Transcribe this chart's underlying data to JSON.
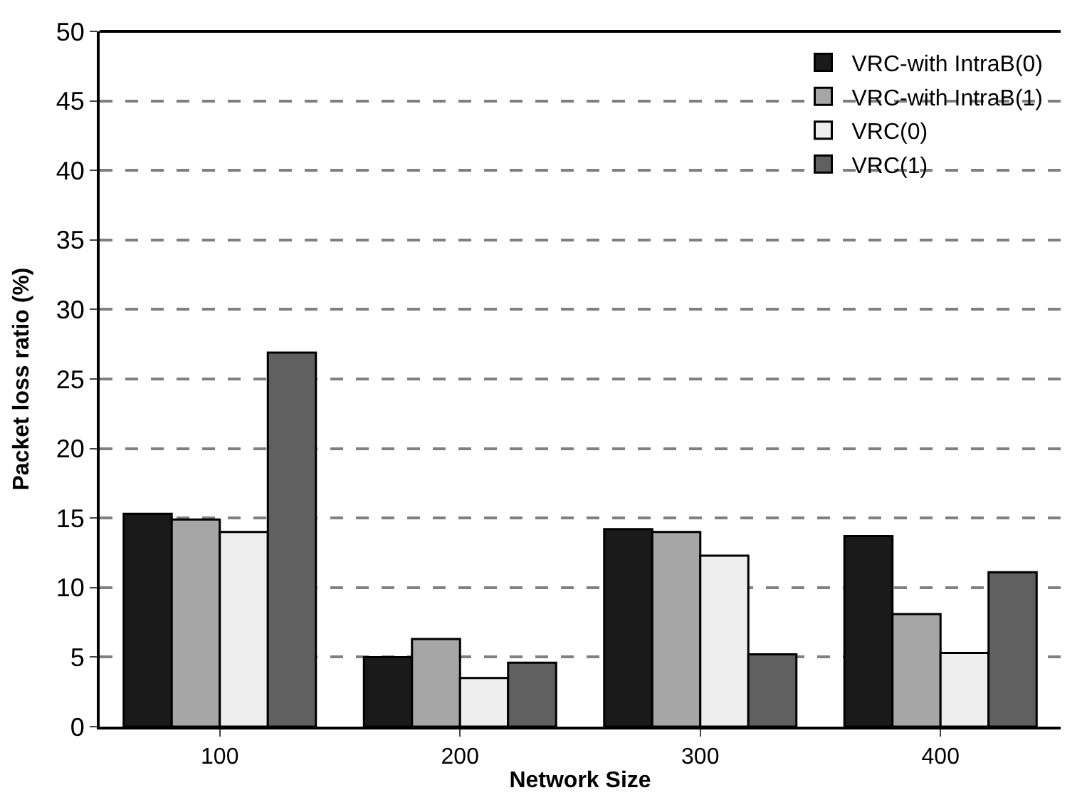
{
  "chart_data": {
    "type": "bar",
    "xlabel": "Network Size",
    "ylabel": "Packet loss ratio (%)",
    "categories": [
      "100",
      "200",
      "300",
      "400"
    ],
    "series": [
      {
        "name": "VRC-with IntraB(0)",
        "color": "#1a1a1a",
        "values": [
          15.3,
          5.0,
          14.2,
          13.7
        ]
      },
      {
        "name": "VRC-with IntraB(1)",
        "color": "#a6a6a6",
        "values": [
          14.9,
          6.3,
          14.0,
          8.1
        ]
      },
      {
        "name": "VRC(0)",
        "color": "#eeeeee",
        "values": [
          14.0,
          3.5,
          12.3,
          5.3
        ]
      },
      {
        "name": "VRC(1)",
        "color": "#606060",
        "values": [
          26.9,
          4.6,
          5.2,
          11.1
        ]
      }
    ],
    "ylim": [
      0,
      50
    ],
    "yticks": [
      0,
      5,
      10,
      15,
      20,
      25,
      30,
      35,
      40,
      45,
      50
    ],
    "grid": "y",
    "legend": "top right"
  }
}
